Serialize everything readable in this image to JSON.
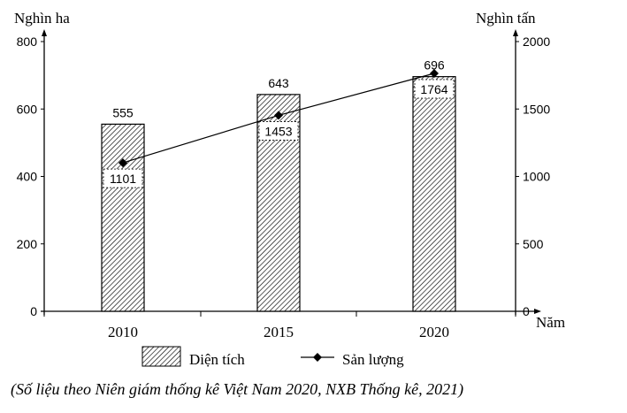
{
  "chart_data": {
    "type": "bar+line",
    "categories": [
      "2010",
      "2015",
      "2020"
    ],
    "series": [
      {
        "name": "Diện tích",
        "type": "bar",
        "axis": "left",
        "values": [
          555,
          643,
          696
        ]
      },
      {
        "name": "Sản lượng",
        "type": "line",
        "axis": "right",
        "values": [
          1101,
          1453,
          1764
        ]
      }
    ],
    "left_axis": {
      "label": "Nghìn ha",
      "ylim": [
        0,
        800
      ],
      "ticks": [
        0,
        200,
        400,
        600,
        800
      ]
    },
    "right_axis": {
      "label": "Nghìn tấn",
      "ylim": [
        0,
        2000
      ],
      "ticks": [
        0,
        500,
        1000,
        1500,
        2000
      ]
    },
    "xlabel": "Năm",
    "legend": {
      "position": "bottom",
      "entries": [
        "Diện tích",
        "Sản lượng"
      ]
    },
    "caption": "(Số liệu theo Niên giám thống kê Việt Nam 2020, NXB Thống kê, 2021)",
    "grid": false
  }
}
